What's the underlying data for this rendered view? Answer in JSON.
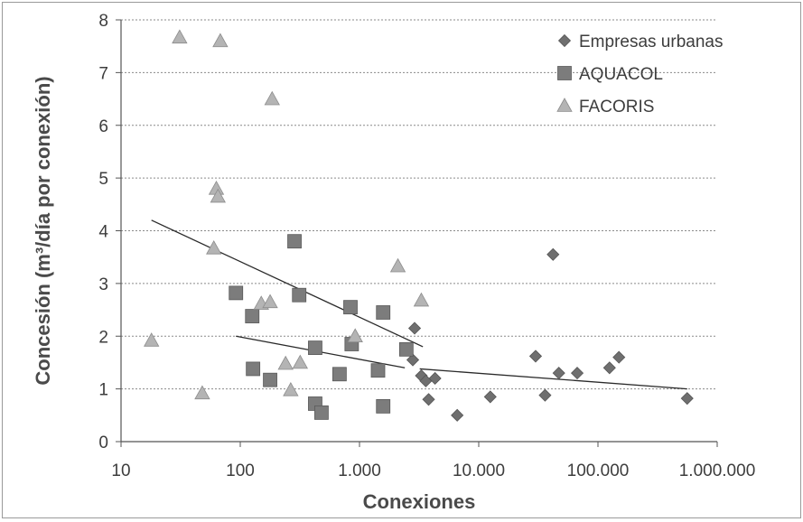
{
  "chart_data": {
    "type": "scatter",
    "title": "",
    "xlabel": "Conexiones",
    "ylabel": "Concesión (m³/día por conexión)",
    "xscale": "log",
    "xlim": [
      10,
      1000000
    ],
    "ylim": [
      0,
      8
    ],
    "x_ticks": [
      10,
      100,
      1000,
      10000,
      100000,
      1000000
    ],
    "x_tick_labels": [
      "10",
      "100",
      "1.000",
      "10.000",
      "100.000",
      "1.000.000"
    ],
    "y_ticks": [
      0,
      1,
      2,
      3,
      4,
      5,
      6,
      7,
      8
    ],
    "y_tick_labels": [
      "0",
      "1",
      "2",
      "3",
      "4",
      "5",
      "6",
      "7",
      "8"
    ],
    "grid": "horizontal dotted",
    "legend_position": "top-right",
    "series": [
      {
        "name": "Empresas urbanas",
        "marker": "diamond",
        "color": "#6f6f6f",
        "points": [
          [
            2900,
            2.15
          ],
          [
            2800,
            1.55
          ],
          [
            3300,
            1.25
          ],
          [
            3600,
            1.15
          ],
          [
            4300,
            1.2
          ],
          [
            3800,
            0.8
          ],
          [
            6600,
            0.5
          ],
          [
            12500,
            0.85
          ],
          [
            30000,
            1.62
          ],
          [
            36000,
            0.88
          ],
          [
            42000,
            3.55
          ],
          [
            47000,
            1.3
          ],
          [
            67000,
            1.3
          ],
          [
            125000,
            1.4
          ],
          [
            150000,
            1.6
          ],
          [
            560000,
            0.82
          ]
        ]
      },
      {
        "name": "AQUACOL",
        "marker": "square",
        "color": "#7c7c7c",
        "points": [
          [
            92,
            2.82
          ],
          [
            126,
            2.38
          ],
          [
            128,
            1.38
          ],
          [
            178,
            1.17
          ],
          [
            285,
            3.8
          ],
          [
            312,
            2.78
          ],
          [
            425,
            1.78
          ],
          [
            425,
            0.72
          ],
          [
            480,
            0.55
          ],
          [
            680,
            1.28
          ],
          [
            840,
            2.55
          ],
          [
            860,
            1.85
          ],
          [
            1430,
            1.35
          ],
          [
            1580,
            2.45
          ],
          [
            1580,
            0.67
          ],
          [
            2470,
            1.75
          ]
        ]
      },
      {
        "name": "FACORIS",
        "marker": "triangle",
        "color": "#b4b4b4",
        "points": [
          [
            18,
            1.92
          ],
          [
            31,
            7.67
          ],
          [
            48,
            0.92
          ],
          [
            60,
            3.67
          ],
          [
            63,
            4.8
          ],
          [
            65,
            4.65
          ],
          [
            68,
            7.6
          ],
          [
            150,
            2.62
          ],
          [
            178,
            2.65
          ],
          [
            185,
            6.5
          ],
          [
            240,
            1.48
          ],
          [
            265,
            0.98
          ],
          [
            318,
            1.5
          ],
          [
            920,
            2.0
          ],
          [
            2100,
            3.33
          ],
          [
            3300,
            2.68
          ]
        ]
      }
    ],
    "trend_lines": [
      {
        "from": [
          18,
          4.2
        ],
        "to": [
          3400,
          1.8
        ]
      },
      {
        "from": [
          92,
          2.0
        ],
        "to": [
          2400,
          1.4
        ]
      },
      {
        "from": [
          3200,
          1.38
        ],
        "to": [
          560000,
          1.0
        ]
      }
    ]
  }
}
